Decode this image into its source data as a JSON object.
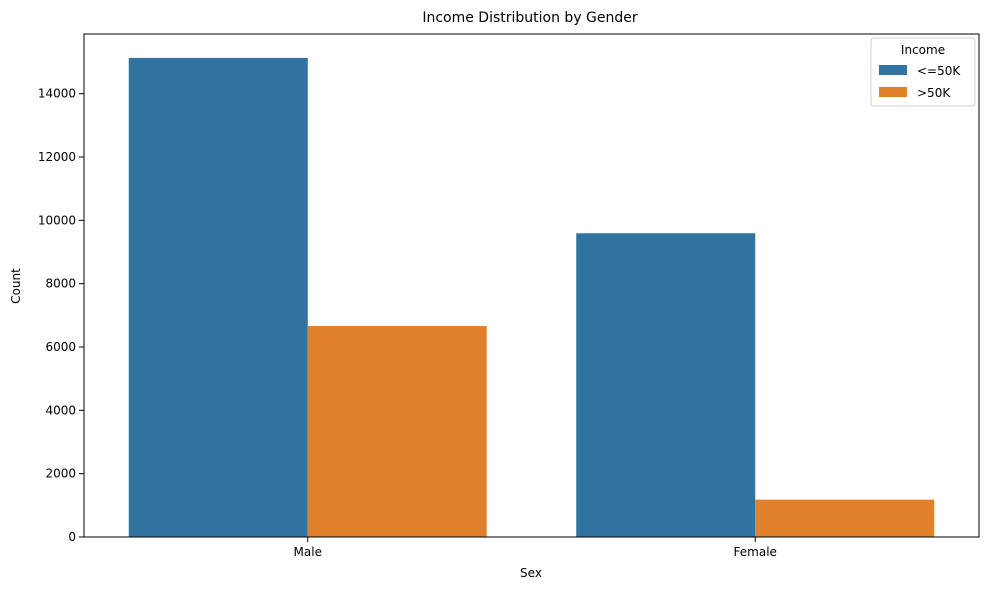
{
  "chart_data": {
    "type": "bar",
    "title": "Income Distribution by Gender",
    "xlabel": "Sex",
    "ylabel": "Count",
    "categories": [
      "Male",
      "Female"
    ],
    "series": [
      {
        "name": "<=50K",
        "values": [
          15128,
          9592
        ],
        "color": "#3274a1"
      },
      {
        "name": ">50K",
        "values": [
          6662,
          1179
        ],
        "color": "#e1812c"
      }
    ],
    "ylim": [
      0,
      15884
    ],
    "yticks": [
      0,
      2000,
      4000,
      6000,
      8000,
      10000,
      12000,
      14000
    ],
    "legend": {
      "title": "Income",
      "placement": "top-right"
    },
    "grid": false
  }
}
